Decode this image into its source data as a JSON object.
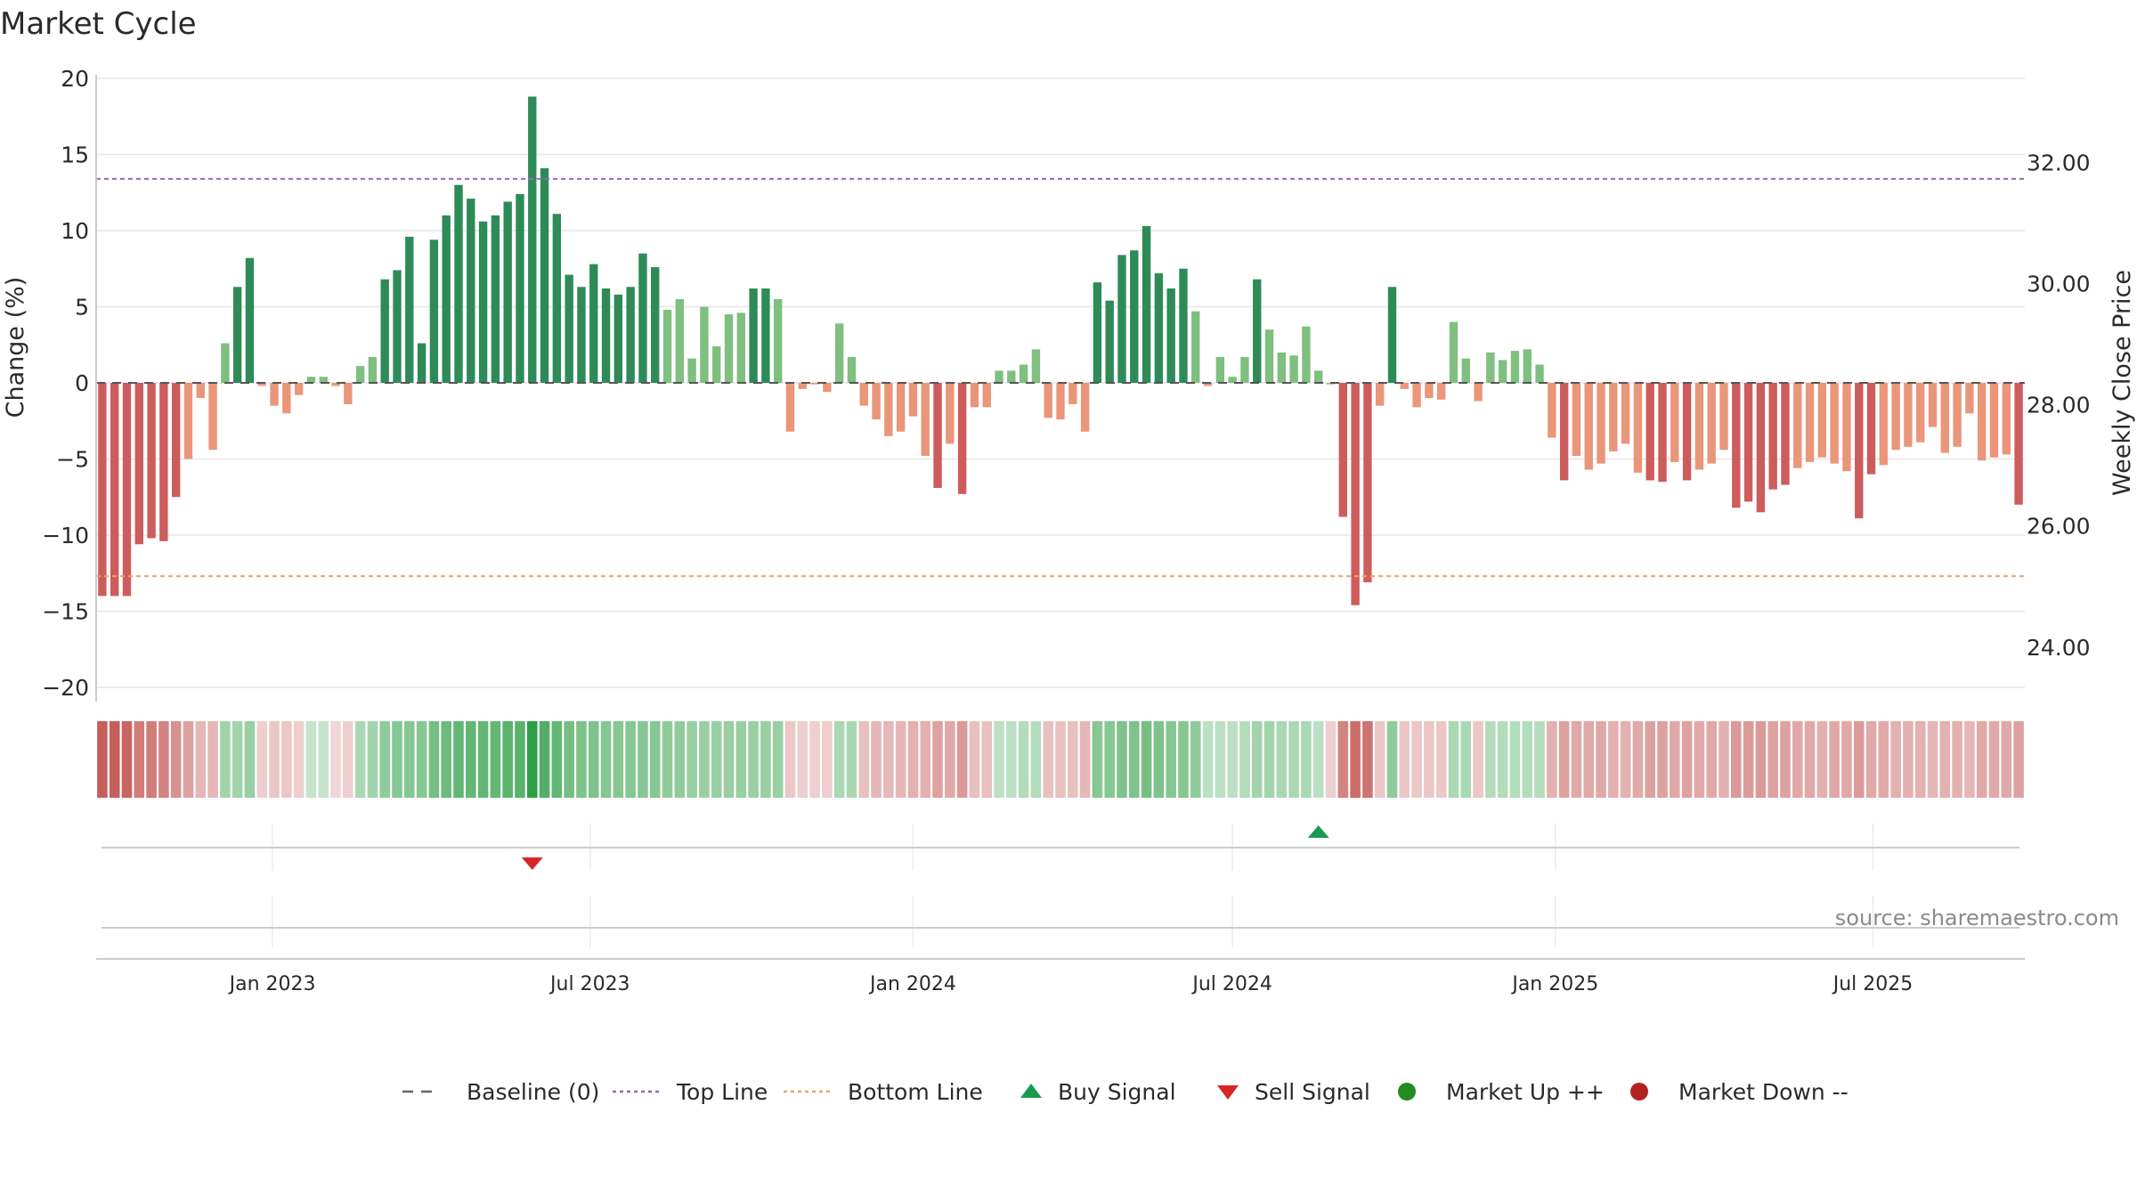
{
  "chart_data": {
    "type": "bar",
    "title": "Market Cycle",
    "ylabel": "Change (%)",
    "y2label": "Weekly Close Price",
    "ylim": [
      -21,
      20
    ],
    "y2lim": [
      23.1,
      33.45
    ],
    "yticks": [
      20,
      15,
      10,
      5,
      0,
      -5,
      -10,
      -15,
      -20
    ],
    "ytick_labels": [
      "20",
      "15",
      "10",
      "5",
      "0",
      "−5",
      "−10",
      "−15",
      "−20"
    ],
    "y2ticks": [
      32,
      30,
      28,
      26,
      24
    ],
    "y2tick_labels": [
      "32.00",
      "30.00",
      "28.00",
      "26.00",
      "24.00"
    ],
    "top_line": 13.4,
    "bottom_line": -12.7,
    "x_start": "2022-09-26",
    "week_step_days": 7,
    "xticks": [
      {
        "date": "2023-01-01",
        "label": "Jan 2023"
      },
      {
        "date": "2023-07-01",
        "label": "Jul 2023"
      },
      {
        "date": "2024-01-01",
        "label": "Jan 2024"
      },
      {
        "date": "2024-07-01",
        "label": "Jul 2024"
      },
      {
        "date": "2025-01-01",
        "label": "Jan 2025"
      },
      {
        "date": "2025-07-01",
        "label": "Jul 2025"
      }
    ],
    "values": [
      -14,
      -14,
      -14,
      -10.6,
      -10.2,
      -10.4,
      -7.5,
      -5,
      -1,
      -4.4,
      2.6,
      6.3,
      8.2,
      -0.2,
      -1.5,
      -2,
      -0.8,
      0.4,
      0.4,
      -0.2,
      -1.4,
      1.1,
      1.7,
      6.8,
      7.4,
      9.6,
      2.6,
      9.4,
      11,
      13,
      12.1,
      10.6,
      11,
      11.9,
      12.4,
      18.8,
      14.1,
      11.1,
      7.1,
      6.3,
      7.8,
      6.2,
      5.8,
      6.3,
      8.5,
      7.6,
      4.8,
      5.5,
      1.6,
      5,
      2.4,
      4.5,
      4.6,
      6.2,
      6.2,
      5.5,
      -3.2,
      -0.4,
      -0.1,
      -0.6,
      3.9,
      1.7,
      -1.5,
      -2.4,
      -3.5,
      -3.2,
      -2.2,
      -4.8,
      -6.9,
      -4,
      -7.3,
      -1.6,
      -1.6,
      0.8,
      0.8,
      1.2,
      2.2,
      -2.3,
      -2.4,
      -1.4,
      -3.2,
      6.6,
      5.4,
      8.4,
      8.7,
      10.3,
      7.2,
      6.2,
      7.5,
      4.7,
      -0.2,
      1.7,
      0.4,
      1.7,
      6.8,
      3.5,
      2,
      1.8,
      3.7,
      0.8,
      -0.1,
      -8.8,
      -14.6,
      -13.1,
      -1.5,
      6.3,
      -0.4,
      -1.6,
      -1,
      -1.1,
      4,
      1.6,
      -1.2,
      2,
      1.5,
      2.1,
      2.2,
      1.2,
      -3.6,
      -6.4,
      -4.8,
      -5.7,
      -5.3,
      -4.5,
      -4,
      -5.9,
      -6.4,
      -6.5,
      -5.2,
      -6.4,
      -5.7,
      -5.3,
      -4.4,
      -8.2,
      -7.8,
      -8.5,
      -7,
      -6.7,
      -5.6,
      -5.2,
      -4.9,
      -5.3,
      -5.8,
      -8.9,
      -6,
      -5.4,
      -4.4,
      -4.2,
      -3.9,
      -2.9,
      -4.6,
      -4.2,
      -2,
      -5.1,
      -4.9,
      -4.7,
      -8
    ],
    "band_strength": [
      -0.9,
      -0.9,
      -0.85,
      -0.7,
      -0.7,
      -0.65,
      -0.55,
      -0.45,
      -0.3,
      -0.3,
      0.35,
      0.35,
      0.4,
      -0.15,
      -0.2,
      -0.2,
      -0.15,
      0.15,
      0.15,
      -0.1,
      -0.15,
      0.3,
      0.35,
      0.45,
      0.5,
      0.5,
      0.5,
      0.6,
      0.65,
      0.7,
      0.7,
      0.7,
      0.7,
      0.75,
      0.75,
      1,
      0.8,
      0.7,
      0.6,
      0.55,
      0.55,
      0.5,
      0.5,
      0.5,
      0.5,
      0.5,
      0.45,
      0.45,
      0.4,
      0.4,
      0.4,
      0.4,
      0.4,
      0.4,
      0.4,
      0.4,
      -0.2,
      -0.15,
      -0.15,
      -0.15,
      0.3,
      0.3,
      -0.25,
      -0.3,
      -0.3,
      -0.3,
      -0.35,
      -0.35,
      -0.45,
      -0.4,
      -0.5,
      -0.25,
      -0.25,
      0.2,
      0.2,
      0.25,
      0.25,
      -0.25,
      -0.25,
      -0.25,
      -0.3,
      0.5,
      0.5,
      0.55,
      0.55,
      0.6,
      0.55,
      0.5,
      0.5,
      0.45,
      0.2,
      0.2,
      0.2,
      0.25,
      0.35,
      0.35,
      0.3,
      0.3,
      0.3,
      0.2,
      -0.15,
      -0.65,
      -0.8,
      -0.75,
      -0.2,
      0.45,
      -0.2,
      -0.2,
      -0.2,
      -0.2,
      0.3,
      0.3,
      -0.2,
      0.25,
      0.25,
      0.25,
      0.25,
      0.25,
      -0.35,
      -0.45,
      -0.4,
      -0.4,
      -0.4,
      -0.35,
      -0.35,
      -0.4,
      -0.45,
      -0.45,
      -0.4,
      -0.45,
      -0.4,
      -0.4,
      -0.35,
      -0.5,
      -0.5,
      -0.5,
      -0.45,
      -0.45,
      -0.4,
      -0.4,
      -0.35,
      -0.4,
      -0.4,
      -0.5,
      -0.4,
      -0.4,
      -0.35,
      -0.35,
      -0.35,
      -0.3,
      -0.35,
      -0.35,
      -0.3,
      -0.4,
      -0.4,
      -0.4,
      -0.45
    ],
    "sell_signals": [
      {
        "date": "2023-05-29",
        "label": "Sell Signal"
      }
    ],
    "buy_signals": [
      {
        "date": "2024-08-19",
        "label": "Buy Signal"
      }
    ],
    "source": "source: sharemaestro.com",
    "legend": [
      {
        "label": "Baseline (0)",
        "symbol": "dash",
        "color": "#666666"
      },
      {
        "label": "Top Line",
        "symbol": "dot-line",
        "color": "#9467bd"
      },
      {
        "label": "Bottom Line",
        "symbol": "dot-line",
        "color": "#f0a060"
      },
      {
        "label": "Buy Signal",
        "symbol": "triangle-up",
        "color": "#1a9a50"
      },
      {
        "label": "Sell Signal",
        "symbol": "triangle-down",
        "color": "#d62728"
      },
      {
        "label": "Market Up ++",
        "symbol": "circle",
        "color": "#228b22"
      },
      {
        "label": "Market Down --",
        "symbol": "circle",
        "color": "#b22222"
      }
    ],
    "legend_position": "bottom",
    "grid": true,
    "colors": {
      "up_strong": "#2e8b57",
      "up_light": "#7fbf7f",
      "down_strong": "#cd5c5c",
      "down_light": "#e9967a",
      "top_line": "#9467bd",
      "bottom_line": "#f0a060"
    }
  }
}
